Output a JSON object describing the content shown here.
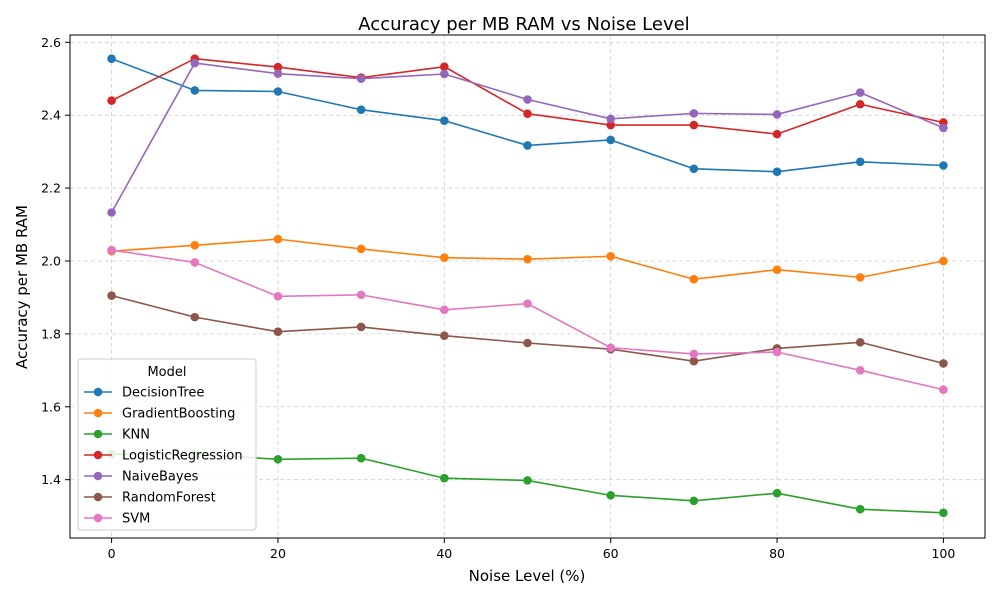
{
  "chart_data": {
    "type": "line",
    "title": "Accuracy per MB RAM vs Noise Level",
    "xlabel": "Noise Level (%)",
    "ylabel": "Accuracy per MB RAM",
    "xlim": [
      -5,
      105
    ],
    "ylim": [
      1.24,
      2.62
    ],
    "xticks": [
      0,
      20,
      40,
      60,
      80,
      100
    ],
    "yticks": [
      1.4,
      1.6,
      1.8,
      2.0,
      2.2,
      2.4,
      2.6
    ],
    "xtick_labels": [
      "0",
      "20",
      "40",
      "60",
      "80",
      "100"
    ],
    "ytick_labels": [
      "1.4",
      "1.6",
      "1.8",
      "2.0",
      "2.2",
      "2.4",
      "2.6"
    ],
    "grid": true,
    "legend_title": "Model",
    "legend_position": "lower-left",
    "x": [
      0,
      10,
      20,
      30,
      40,
      50,
      60,
      70,
      80,
      90,
      100
    ],
    "series": [
      {
        "name": "DecisionTree",
        "color": "#1f77b4",
        "values": [
          2.555,
          2.468,
          2.465,
          2.415,
          2.385,
          2.317,
          2.332,
          2.253,
          2.245,
          2.272,
          2.262
        ]
      },
      {
        "name": "GradientBoosting",
        "color": "#ff7f0e",
        "values": [
          2.027,
          2.043,
          2.06,
          2.033,
          2.009,
          2.005,
          2.013,
          1.95,
          1.976,
          1.955,
          2.0
        ]
      },
      {
        "name": "KNN",
        "color": "#2ca02c",
        "values": [
          1.47,
          1.47,
          1.456,
          1.459,
          1.404,
          1.398,
          1.357,
          1.342,
          1.363,
          1.319,
          1.309
        ]
      },
      {
        "name": "LogisticRegression",
        "color": "#d62728",
        "values": [
          2.44,
          2.555,
          2.532,
          2.503,
          2.533,
          2.404,
          2.373,
          2.373,
          2.348,
          2.43,
          2.38
        ]
      },
      {
        "name": "NaiveBayes",
        "color": "#9467bd",
        "values": [
          2.133,
          2.543,
          2.514,
          2.5,
          2.513,
          2.443,
          2.39,
          2.405,
          2.402,
          2.462,
          2.365
        ]
      },
      {
        "name": "RandomForest",
        "color": "#8c564b",
        "values": [
          1.905,
          1.846,
          1.806,
          1.819,
          1.795,
          1.775,
          1.758,
          1.725,
          1.76,
          1.777,
          1.719
        ]
      },
      {
        "name": "SVM",
        "color": "#e377c2",
        "values": [
          2.03,
          1.996,
          1.903,
          1.907,
          1.866,
          1.883,
          1.762,
          1.745,
          1.75,
          1.7,
          1.647
        ]
      }
    ]
  }
}
